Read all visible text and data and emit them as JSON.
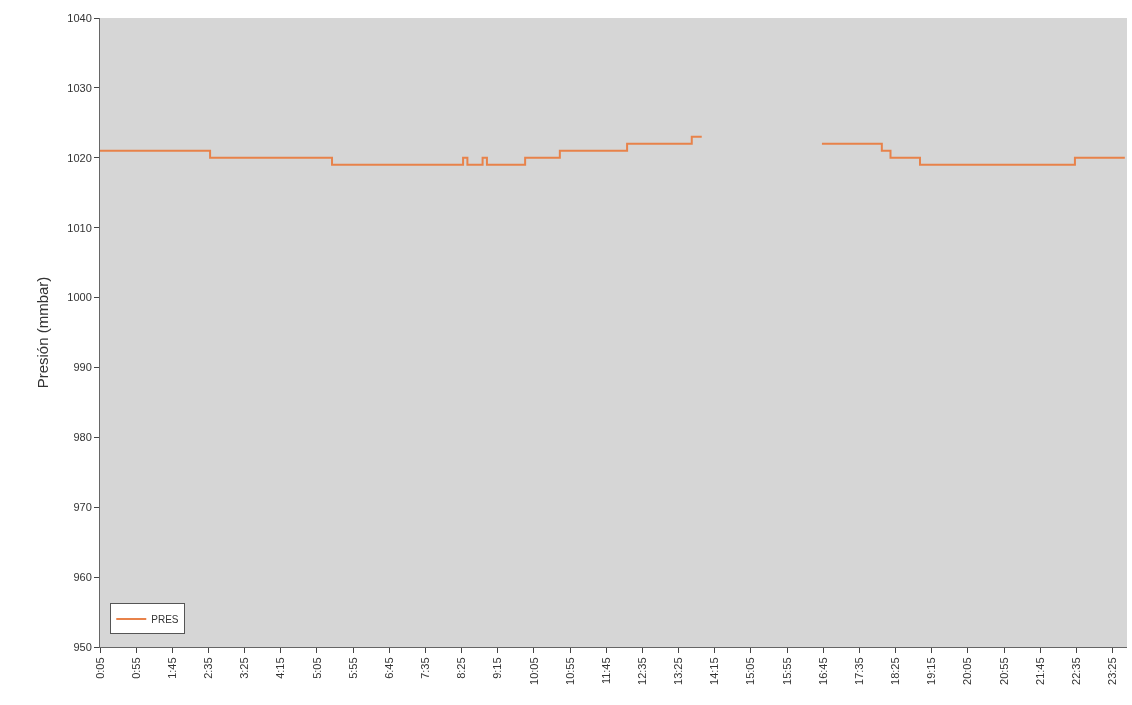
{
  "chart_data": {
    "type": "step",
    "ylabel": "Presión (mmbar)",
    "x": [
      0.083,
      2.62,
      5.43,
      8.45,
      8.55,
      8.62,
      8.9,
      9.0,
      9.88,
      10.68,
      12.23,
      13.72,
      13.95,
      14.0,
      16.72,
      18.1,
      18.3,
      18.98,
      22.55,
      23.7
    ],
    "series": [
      {
        "name": "PRES",
        "color": "#e8824a",
        "values": [
          1021,
          1020,
          1019,
          1020,
          1019,
          1019,
          1020,
          1019,
          1020,
          1021,
          1022,
          1023,
          1023,
          null,
          1022,
          1021,
          1020,
          1019,
          1020,
          1020
        ]
      }
    ],
    "xlim": [
      0.083,
      23.75
    ],
    "ylim": [
      950,
      1040
    ],
    "yticks": [
      950,
      960,
      970,
      980,
      990,
      1000,
      1010,
      1020,
      1030,
      1040
    ],
    "xticks": [
      {
        "value": 0.083,
        "label": "0:05"
      },
      {
        "value": 0.917,
        "label": "0:55"
      },
      {
        "value": 1.75,
        "label": "1:45"
      },
      {
        "value": 2.583,
        "label": "2:35"
      },
      {
        "value": 3.417,
        "label": "3:25"
      },
      {
        "value": 4.25,
        "label": "4:15"
      },
      {
        "value": 5.083,
        "label": "5:05"
      },
      {
        "value": 5.917,
        "label": "5:55"
      },
      {
        "value": 6.75,
        "label": "6:45"
      },
      {
        "value": 7.583,
        "label": "7:35"
      },
      {
        "value": 8.417,
        "label": "8:25"
      },
      {
        "value": 9.25,
        "label": "9:15"
      },
      {
        "value": 10.083,
        "label": "10:05"
      },
      {
        "value": 10.917,
        "label": "10:55"
      },
      {
        "value": 11.75,
        "label": "11:45"
      },
      {
        "value": 12.583,
        "label": "12:35"
      },
      {
        "value": 13.417,
        "label": "13:25"
      },
      {
        "value": 14.25,
        "label": "14:15"
      },
      {
        "value": 15.083,
        "label": "15:05"
      },
      {
        "value": 15.917,
        "label": "15:55"
      },
      {
        "value": 16.75,
        "label": "16:45"
      },
      {
        "value": 17.583,
        "label": "17:35"
      },
      {
        "value": 18.417,
        "label": "18:25"
      },
      {
        "value": 19.25,
        "label": "19:15"
      },
      {
        "value": 20.083,
        "label": "20:05"
      },
      {
        "value": 20.917,
        "label": "20:55"
      },
      {
        "value": 21.75,
        "label": "21:45"
      },
      {
        "value": 22.583,
        "label": "22:35"
      },
      {
        "value": 23.417,
        "label": "23:25"
      }
    ],
    "legend": "bottom left",
    "grid": false,
    "marker": "none",
    "line_style": "solid"
  }
}
